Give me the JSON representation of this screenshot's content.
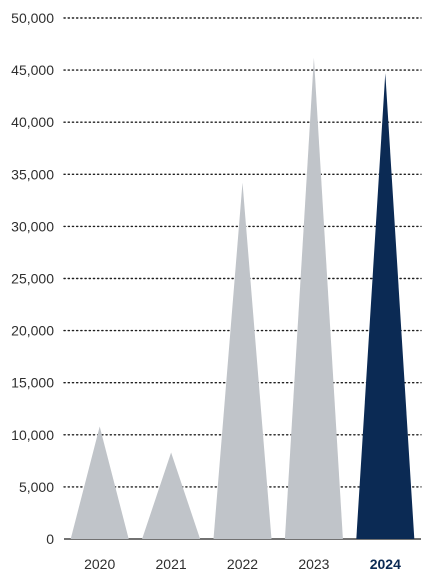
{
  "chart_data": {
    "type": "bar",
    "bar_shape": "triangle",
    "title": "",
    "xlabel": "",
    "ylabel": "",
    "categories": [
      "2020",
      "2021",
      "2022",
      "2023",
      "2024"
    ],
    "values": [
      10800,
      8300,
      34200,
      46200,
      44700
    ],
    "highlight_index": 4,
    "ylim": [
      0,
      50000
    ],
    "y_ticks": [
      0,
      5000,
      10000,
      15000,
      20000,
      25000,
      30000,
      35000,
      40000,
      45000,
      50000
    ],
    "y_tick_labels": [
      "0",
      "5,000",
      "10,000",
      "15,000",
      "20,000",
      "25,000",
      "30,000",
      "35,000",
      "40,000",
      "45,000",
      "50,000"
    ],
    "grid": true,
    "legend": "none",
    "colors": {
      "default_bar": "#c0c4c9",
      "highlight_bar": "#0b2a54",
      "tick_text": "#2f2f2f",
      "highlight_tick_text": "#0b2a54",
      "grid": "#1f1f1f"
    }
  }
}
